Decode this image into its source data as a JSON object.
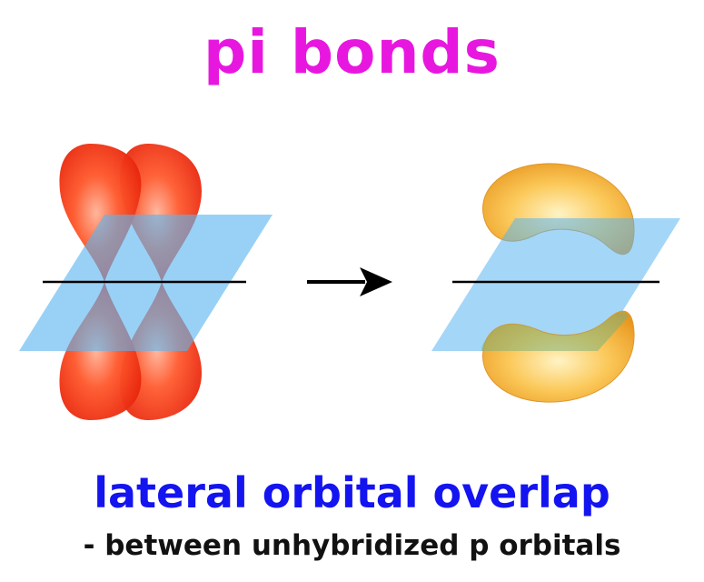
{
  "title": "pi bonds",
  "subtitle": "lateral orbital overlap",
  "caption": "- between unhybridized p orbitals",
  "colors": {
    "title": "#e817e0",
    "subtitle": "#1414f0",
    "caption": "#111111",
    "p_orbital": "#ff3b14",
    "pi_orbital": "#f5b33a",
    "nodal_plane": "#5ab4f0",
    "bond_axis": "#000000"
  },
  "diagram": {
    "left_panel": "two parallel unhybridized p orbitals on a nodal plane",
    "arrow": "right-arrow",
    "right_panel": "pi bond electron density above and below the nodal plane"
  }
}
